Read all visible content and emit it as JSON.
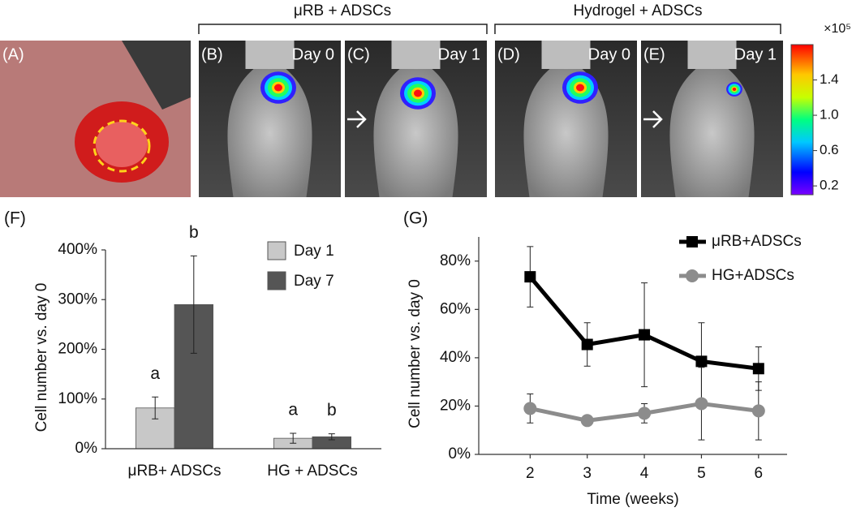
{
  "panels": [
    {
      "label": "(A)"
    },
    {
      "label": "(B)",
      "day": "Day 0"
    },
    {
      "label": "(C)",
      "day": "Day 1"
    },
    {
      "label": "(D)",
      "day": "Day 0"
    },
    {
      "label": "(E)",
      "day": "Day 1"
    }
  ],
  "groups": [
    "μRB + ADSCs",
    "Hydrogel + ADSCs"
  ],
  "colorbar": {
    "unit": "×10⁵",
    "lim": [
      0.1,
      1.8
    ],
    "ticks": [
      0.2,
      0.6,
      {
        "value": 1,
        "label": "1.0"
      },
      1.4
    ]
  },
  "chart_data": [
    {
      "type": "bar",
      "panel": "(F)",
      "ylabel": "Cell number vs. day 0",
      "categories": [
        "μRB+ ADSCs",
        "HG + ADSCs"
      ],
      "series": [
        {
          "name": "Day 1",
          "color": "#c8c8c8",
          "values": [
            82,
            21
          ],
          "errors": [
            22,
            10
          ],
          "significance": [
            "a",
            "a"
          ]
        },
        {
          "name": "Day 7",
          "color": "#555555",
          "values": [
            290,
            24
          ],
          "errors": [
            98,
            6
          ],
          "significance": [
            "b",
            "b"
          ]
        }
      ],
      "ylim": [
        0,
        400
      ],
      "yticks": [
        {
          "value": 0,
          "label": "0%"
        },
        {
          "value": 100,
          "label": "100%"
        },
        {
          "value": 200,
          "label": "200%"
        },
        {
          "value": 300,
          "label": "300%"
        },
        {
          "value": 400,
          "label": "400%"
        }
      ]
    },
    {
      "type": "line",
      "panel": "(G)",
      "ylabel": "Cell number vs. day 0",
      "xlabel": "Time (weeks)",
      "x": [
        2,
        3,
        4,
        5,
        6
      ],
      "series": [
        {
          "name": "μRB+ADSCs",
          "color": "#000000",
          "marker": "square",
          "values": [
            73.5,
            45.5,
            49.5,
            38.5,
            35.5
          ],
          "errors": [
            12.5,
            9,
            21.5,
            16,
            9
          ]
        },
        {
          "name": "HG+ADSCs",
          "color": "#8c8c8c",
          "marker": "circle",
          "values": [
            19,
            14,
            17,
            21,
            18
          ],
          "errors": [
            6,
            0,
            4,
            15,
            12
          ]
        }
      ],
      "xlim": [
        1.1,
        6.5
      ],
      "xticks": [
        2,
        3,
        4,
        5,
        6
      ],
      "ylim": [
        0,
        90
      ],
      "yticks": [
        {
          "value": 0,
          "label": "0%"
        },
        {
          "value": 20,
          "label": "20%"
        },
        {
          "value": 40,
          "label": "40%"
        },
        {
          "value": 60,
          "label": "60%"
        },
        {
          "value": 80,
          "label": "80%"
        }
      ]
    }
  ]
}
